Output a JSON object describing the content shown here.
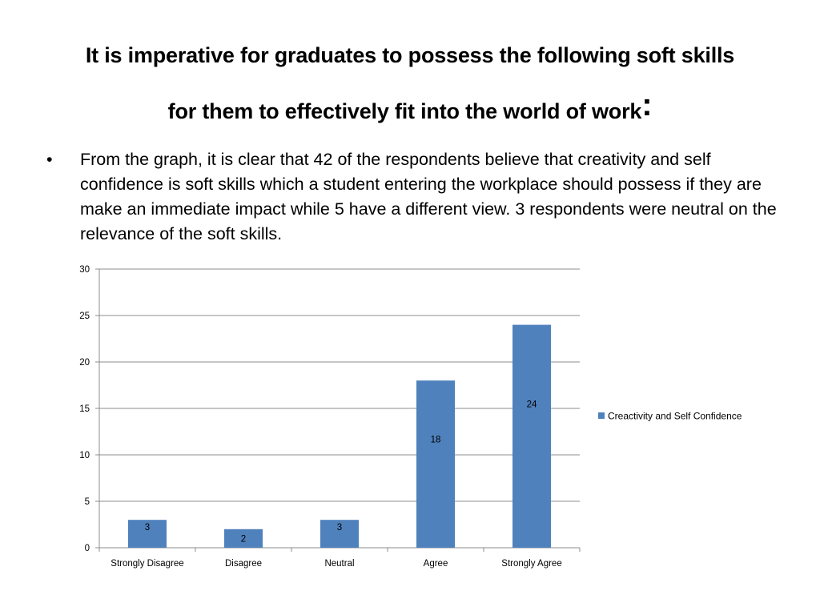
{
  "slide": {
    "title_line1": "It is imperative for graduates to possess the following soft skills",
    "title_line2": "for them to effectively fit into the world of work",
    "title_colon": ":",
    "bullet_symbol": "•",
    "bullet_text": "From the graph, it is clear that 42 of the respondents believe that creativity and self confidence is soft skills which a student entering the workplace should possess if they are make an immediate impact while 5 have a different view. 3 respondents were neutral on the relevance of the soft skills."
  },
  "chart_data": {
    "type": "bar",
    "categories": [
      "Strongly Disagree",
      "Disagree",
      "Neutral",
      "Agree",
      "Strongly Agree"
    ],
    "series": [
      {
        "name": "Creactivity and Self Confidence",
        "values": [
          3,
          2,
          3,
          18,
          24
        ],
        "color": "#4f81bd"
      }
    ],
    "ylim": [
      0,
      30
    ],
    "yticks": [
      0,
      5,
      10,
      15,
      20,
      25,
      30
    ],
    "grid": true,
    "legend": "right",
    "data_labels": true,
    "title": "",
    "xlabel": "",
    "ylabel": ""
  }
}
